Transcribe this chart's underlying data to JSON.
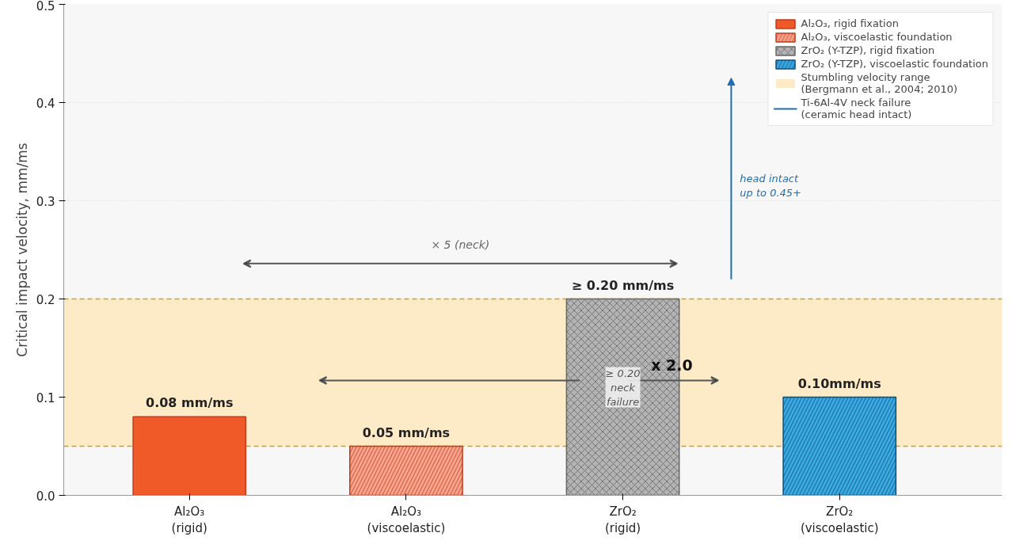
{
  "chart_data": {
    "type": "bar",
    "ylabel": "Critical impact velocity, mm/ms",
    "categories": [
      "Al₂O₃\n(rigid)",
      "Al₂O₃\n(viscoelastic)",
      "ZrO₂\n(rigid)",
      "ZrO₂\n(viscoelastic)"
    ],
    "series": [
      {
        "name": "Al₂O₃, rigid fixation",
        "color": "#f05a28",
        "values": [
          0.08,
          null,
          null,
          null
        ],
        "value_labels": [
          "0.08 mm/ms",
          null,
          null,
          null
        ]
      },
      {
        "name": "Al₂O₃, viscoelastic foundation",
        "color": "#f7a58e",
        "values": [
          null,
          0.05,
          null,
          null
        ],
        "value_labels": [
          null,
          "0.05 mm/ms",
          null,
          null
        ]
      },
      {
        "name": "ZrO₂ (Y-TZP), rigid fixation",
        "color": "#b3b3b3",
        "values": [
          null,
          null,
          0.2,
          null
        ],
        "value_labels": [
          null,
          null,
          "≥ 0.20 mm/ms",
          null
        ]
      },
      {
        "name": "ZrO₂ (Y-TZP), viscoelastic foundation",
        "color": "#3aaae0",
        "values": [
          null,
          null,
          null,
          0.1
        ],
        "value_labels": [
          null,
          null,
          null,
          "0.10mm/ms"
        ]
      },
      {
        "name": "Ti-6Al-4V neck failure\n(ceramic head intact)",
        "type": "line",
        "color": "#1f6fb2",
        "values": [
          null,
          null,
          null,
          null
        ]
      }
    ],
    "bands": [
      {
        "axis": "y",
        "from": 0.05,
        "to": 0.2,
        "label": "Stumbling velocity range\n(Bergmann et al., 2004; 2010)",
        "color": "#fdebc8"
      }
    ],
    "ref_lines": [
      {
        "axis": "y",
        "value": 0.05,
        "color": "#d4a017",
        "line_style": "dashed"
      },
      {
        "axis": "y",
        "value": 0.2,
        "color": "#d4a017",
        "line_style": "dashed"
      }
    ],
    "annotations": [
      "× 5 (neck)",
      "x 2.0",
      "≥ 0.20\nneck\nfailure",
      "head intact\nup to 0.45+"
    ],
    "ylim": [
      0,
      0.5
    ],
    "yticks": [
      {
        "value": 0,
        "label": "0.0"
      },
      0.1,
      0.2,
      0.3,
      0.4,
      0.5
    ],
    "grid": "y",
    "legend": "top right"
  }
}
